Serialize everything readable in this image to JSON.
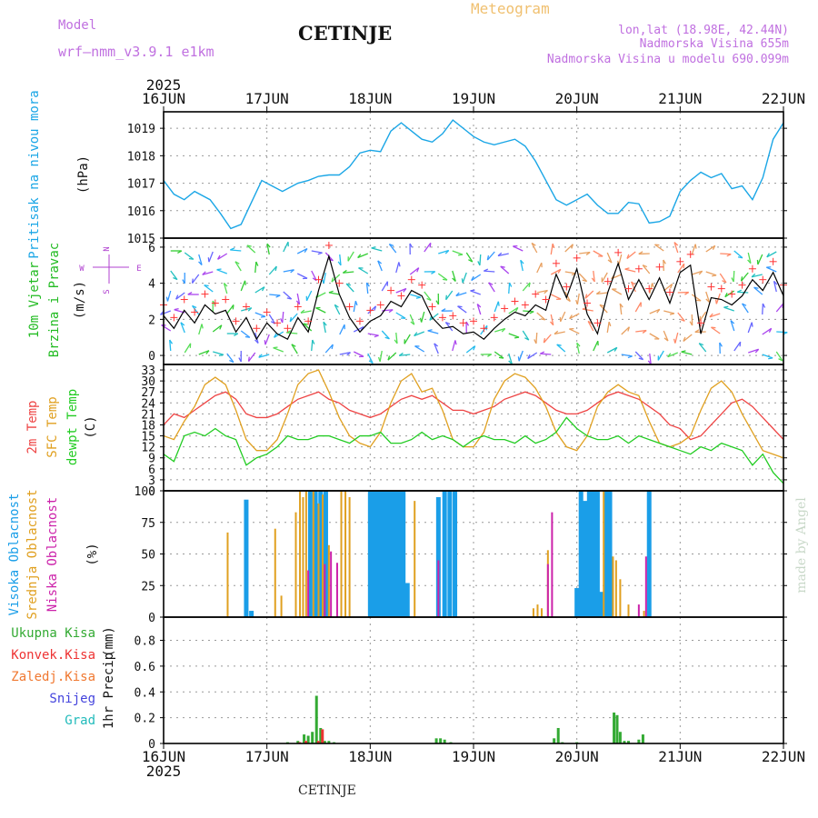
{
  "header": {
    "model_label": "Model",
    "model_name": "wrf—nmm_v3.9.1 e1km",
    "station": "CETINJE",
    "product": "Meteogram",
    "coords": "lon,lat (18.98E, 42.44N)",
    "altitude": "Nadmorska Visina 655m",
    "model_altitude": "Nadmorska Visina u modelu 690.099m"
  },
  "footer": {
    "station": "CETINJE",
    "watermark": "made by Angel"
  },
  "x_axis": {
    "year": "2025",
    "day_labels": [
      "16JUN",
      "17JUN",
      "18JUN",
      "19JUN",
      "20JUN",
      "21JUN",
      "22JUN"
    ]
  },
  "colors": {
    "pressure": "#1aa6e6",
    "wind_speed": "#000000",
    "gust_marker": "#ff3333",
    "temp_2m": "#ee4444",
    "temp_sfc": "#e0a020",
    "dewpoint": "#22cc22",
    "cloud_high": "#1a9ee8",
    "cloud_mid": "#e0a020",
    "cloud_low": "#cc22aa",
    "rain_total": "#33aa33",
    "rain_conv": "#ee3333",
    "rain_frozen": "#f07830",
    "snow": "#4444dd",
    "hail": "#22bbbb"
  },
  "chart_data": [
    {
      "type": "line",
      "panel": "pressure",
      "ylabel": [
        "Pritisak na nivou mora",
        "(hPa)"
      ],
      "ylim": [
        1015,
        1019.6
      ],
      "yticks": [
        1015,
        1016,
        1017,
        1018,
        1019
      ],
      "x_days": [
        0,
        0.1,
        0.2,
        0.3,
        0.45,
        0.55,
        0.65,
        0.75,
        0.85,
        0.95,
        1.05,
        1.15,
        1.3,
        1.4,
        1.5,
        1.6,
        1.7,
        1.8,
        1.9,
        2.0,
        2.1,
        2.2,
        2.3,
        2.4,
        2.5,
        2.6,
        2.7,
        2.8,
        2.9,
        3.0,
        3.1,
        3.2,
        3.3,
        3.4,
        3.5,
        3.6,
        3.7,
        3.8,
        3.9,
        4.0,
        4.1,
        4.2,
        4.3,
        4.4,
        4.5,
        4.6,
        4.7,
        4.8,
        4.9,
        5.0,
        5.1,
        5.2,
        5.3,
        5.4,
        5.5,
        5.6,
        5.7,
        5.8,
        5.9,
        6.0
      ],
      "series": [
        {
          "values": [
            1017.1,
            1016.6,
            1016.4,
            1016.7,
            1016.4,
            1015.9,
            1015.35,
            1015.5,
            1016.3,
            1017.1,
            1016.9,
            1016.7,
            1017.0,
            1017.1,
            1017.25,
            1017.3,
            1017.3,
            1017.6,
            1018.1,
            1018.2,
            1018.15,
            1018.9,
            1019.2,
            1018.9,
            1018.6,
            1018.5,
            1018.8,
            1019.3,
            1019.0,
            1018.7,
            1018.5,
            1018.4,
            1018.5,
            1018.6,
            1018.35,
            1017.8,
            1017.1,
            1016.4,
            1016.2,
            1016.4,
            1016.6,
            1016.2,
            1015.9,
            1015.9,
            1016.3,
            1016.25,
            1015.55,
            1015.6,
            1015.8,
            1016.7,
            1017.1,
            1017.4,
            1017.2,
            1017.35,
            1016.8,
            1016.9,
            1016.4,
            1017.2,
            1018.6,
            1019.2
          ]
        }
      ]
    },
    {
      "type": "line",
      "panel": "wind",
      "ylabel": [
        "10m Vjetar",
        "Brzina i Pravac",
        "(m/s)"
      ],
      "compass": {
        "n": "N",
        "s": "S",
        "e": "E",
        "w": "W"
      },
      "ylim": [
        -0.5,
        6.5
      ],
      "yticks": [
        0,
        2,
        4,
        6
      ],
      "x_days": [
        0,
        0.1,
        0.2,
        0.3,
        0.4,
        0.5,
        0.6,
        0.7,
        0.8,
        0.9,
        1.0,
        1.1,
        1.2,
        1.3,
        1.4,
        1.5,
        1.6,
        1.7,
        1.8,
        1.9,
        2.0,
        2.1,
        2.2,
        2.3,
        2.4,
        2.5,
        2.6,
        2.7,
        2.8,
        2.9,
        3.0,
        3.1,
        3.2,
        3.3,
        3.4,
        3.5,
        3.6,
        3.7,
        3.8,
        3.9,
        4.0,
        4.1,
        4.2,
        4.3,
        4.4,
        4.5,
        4.6,
        4.7,
        4.8,
        4.9,
        5.0,
        5.1,
        5.2,
        5.3,
        5.4,
        5.5,
        5.6,
        5.7,
        5.8,
        5.9,
        6.0
      ],
      "series": [
        {
          "name": "speed",
          "values": [
            2.2,
            1.5,
            2.5,
            1.8,
            2.8,
            2.3,
            2.5,
            1.3,
            2.1,
            0.9,
            1.8,
            1.2,
            0.9,
            2.1,
            1.3,
            3.6,
            5.5,
            3.4,
            2.1,
            1.3,
            1.9,
            2.2,
            3.0,
            2.7,
            3.6,
            3.3,
            2.1,
            1.5,
            1.6,
            1.2,
            1.3,
            0.9,
            1.5,
            2.0,
            2.4,
            2.2,
            2.8,
            2.5,
            4.5,
            3.2,
            4.8,
            2.3,
            1.2,
            3.5,
            5.1,
            3.1,
            4.2,
            3.1,
            4.3,
            2.9,
            4.6,
            5.0,
            1.2,
            3.2,
            3.1,
            2.8,
            3.3,
            4.2,
            3.6,
            4.6,
            3.3
          ]
        }
      ]
    },
    {
      "type": "line",
      "panel": "temperature",
      "ylabel": [
        "2m Temp",
        "SFC Temp",
        "dewpt Temp",
        "(C)"
      ],
      "ylim": [
        0,
        34.5
      ],
      "yticks": [
        0,
        3,
        6,
        9,
        12,
        15,
        18,
        21,
        24,
        27,
        30,
        33
      ],
      "x_days": [
        0,
        0.1,
        0.2,
        0.3,
        0.4,
        0.5,
        0.6,
        0.7,
        0.8,
        0.9,
        1.0,
        1.1,
        1.2,
        1.3,
        1.4,
        1.5,
        1.6,
        1.7,
        1.8,
        1.9,
        2.0,
        2.1,
        2.2,
        2.3,
        2.4,
        2.5,
        2.6,
        2.7,
        2.8,
        2.9,
        3.0,
        3.1,
        3.2,
        3.3,
        3.4,
        3.5,
        3.6,
        3.7,
        3.8,
        3.9,
        4.0,
        4.1,
        4.2,
        4.3,
        4.4,
        4.5,
        4.6,
        4.7,
        4.8,
        4.9,
        5.0,
        5.1,
        5.2,
        5.3,
        5.4,
        5.5,
        5.6,
        5.7,
        5.8,
        5.9,
        6.0
      ],
      "series": [
        {
          "name": "2m Temp",
          "values": [
            18,
            21,
            20,
            22,
            24,
            26,
            27,
            25,
            21,
            20,
            20,
            21,
            23,
            25,
            26,
            27,
            25,
            24,
            22,
            21,
            20,
            21,
            23,
            25,
            26,
            25,
            26,
            24,
            22,
            22,
            21,
            22,
            23,
            25,
            26,
            27,
            26,
            24,
            22,
            21,
            21,
            22,
            24,
            26,
            27,
            26,
            25,
            23,
            21,
            18,
            17,
            14,
            15,
            18,
            21,
            24,
            25,
            23,
            20,
            17,
            14
          ]
        },
        {
          "name": "SFC Temp",
          "values": [
            15,
            14,
            19,
            23,
            29,
            31,
            29,
            22,
            14,
            11,
            11,
            14,
            21,
            29,
            32,
            33,
            27,
            20,
            15,
            13,
            12,
            16,
            24,
            30,
            32,
            27,
            28,
            22,
            14,
            12,
            12,
            16,
            25,
            30,
            32,
            31,
            28,
            23,
            16,
            12,
            11,
            15,
            23,
            27,
            29,
            27,
            26,
            19,
            13,
            12,
            13,
            15,
            22,
            28,
            30,
            27,
            21,
            16,
            11,
            10,
            9
          ]
        },
        {
          "name": "dewpt Temp",
          "values": [
            10,
            8,
            15,
            16,
            15,
            17,
            15,
            14,
            7,
            9,
            10,
            12,
            15,
            14,
            14,
            15,
            15,
            14,
            13,
            15,
            15,
            16,
            13,
            13,
            14,
            16,
            14,
            15,
            14,
            12,
            14,
            15,
            14,
            14,
            13,
            15,
            13,
            14,
            16,
            20,
            17,
            15,
            14,
            14,
            15,
            13,
            15,
            14,
            13,
            12,
            11,
            10,
            12,
            11,
            13,
            12,
            11,
            7,
            10,
            5,
            2
          ]
        }
      ]
    },
    {
      "type": "bar",
      "panel": "clouds",
      "ylabel": [
        "Visoka Oblacnost",
        "Srednja Oblacnost",
        "Niska Oblacnost",
        "(%)"
      ],
      "ylim": [
        0,
        100
      ],
      "yticks": [
        0,
        25,
        50,
        75,
        100
      ],
      "series": [
        {
          "name": "Visoka Oblacnost",
          "x_days": [
            0.8,
            0.85,
            1.42,
            1.47,
            1.52,
            1.57,
            2.0,
            2.04,
            2.08,
            2.12,
            2.16,
            2.2,
            2.24,
            2.28,
            2.32,
            2.36,
            2.66,
            2.72,
            2.77,
            2.82,
            4.0,
            4.04,
            4.08,
            4.12,
            4.16,
            4.2,
            4.24,
            4.28,
            4.32,
            4.7
          ],
          "values": [
            93,
            5,
            100,
            100,
            100,
            100,
            100,
            100,
            100,
            100,
            100,
            100,
            100,
            100,
            100,
            27,
            95,
            100,
            100,
            100,
            23,
            100,
            92,
            100,
            100,
            100,
            20,
            100,
            100,
            100
          ]
        },
        {
          "name": "Srednja Oblacnost",
          "x_days": [
            0.62,
            1.08,
            1.14,
            1.28,
            1.32,
            1.35,
            1.38,
            1.45,
            1.5,
            1.54,
            1.6,
            1.72,
            1.76,
            1.8,
            2.43,
            3.58,
            3.62,
            3.66,
            3.72,
            4.26,
            4.35,
            4.38,
            4.42,
            4.5,
            4.65
          ],
          "values": [
            67,
            70,
            17,
            83,
            100,
            95,
            100,
            100,
            90,
            97,
            57,
            100,
            100,
            95,
            92,
            7,
            10,
            7,
            53,
            100,
            48,
            45,
            30,
            10,
            5
          ]
        },
        {
          "name": "Niska Oblacnost",
          "x_days": [
            1.4,
            1.56,
            1.62,
            1.68,
            2.66,
            3.72,
            3.76,
            4.6,
            4.67
          ],
          "values": [
            37,
            42,
            52,
            43,
            45,
            42,
            83,
            10,
            48
          ]
        }
      ]
    },
    {
      "type": "bar",
      "panel": "precipitation",
      "ylabel": [
        "1hr Precip",
        "(mm)"
      ],
      "legend": [
        "Ukupna Kisa",
        "Konvek.Kisa",
        "Zaledj.Kisa",
        "Snijeg",
        "Grad"
      ],
      "ylim": [
        0,
        0.98
      ],
      "yticks": [
        0,
        0.2,
        0.4,
        0.6,
        0.8
      ],
      "series": [
        {
          "name": "Ukupna Kisa",
          "x_days": [
            1.2,
            1.3,
            1.36,
            1.4,
            1.44,
            1.48,
            1.52,
            1.56,
            1.6,
            1.65,
            2.64,
            2.68,
            2.72,
            2.78,
            3.78,
            3.82,
            3.86,
            4.0,
            4.36,
            4.39,
            4.42,
            4.46,
            4.5,
            4.6,
            4.64
          ],
          "values": [
            0.01,
            0.02,
            0.07,
            0.06,
            0.09,
            0.37,
            0.12,
            0.02,
            0.02,
            0.01,
            0.04,
            0.04,
            0.03,
            0.01,
            0.04,
            0.12,
            0.01,
            0.01,
            0.24,
            0.22,
            0.09,
            0.02,
            0.02,
            0.03,
            0.07
          ]
        },
        {
          "name": "Konvek.Kisa",
          "x_days": [
            1.3,
            1.36,
            1.48,
            1.52
          ],
          "values": [
            0.01,
            0.02,
            0.02,
            0.11
          ]
        }
      ]
    }
  ]
}
